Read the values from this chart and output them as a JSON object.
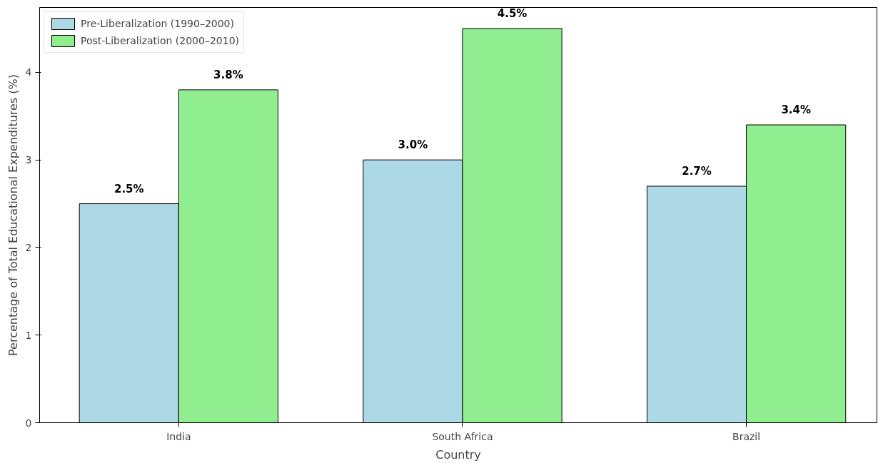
{
  "chart_data": {
    "type": "bar",
    "xlabel": "Country",
    "ylabel": "Percentage of Total Educational Expenditures (%)",
    "categories": [
      "India",
      "South Africa",
      "Brazil"
    ],
    "series": [
      {
        "name": "Pre-Liberalization (1990–2000)",
        "color": "#add8e6",
        "values": [
          2.5,
          3.0,
          2.7
        ],
        "value_labels": [
          "2.5%",
          "3.0%",
          "2.7%"
        ]
      },
      {
        "name": "Post-Liberalization (2000–2010)",
        "color": "#90ee90",
        "values": [
          3.8,
          4.5,
          3.4
        ],
        "value_labels": [
          "3.8%",
          "4.5%",
          "3.4%"
        ]
      }
    ],
    "ylim": [
      0,
      4.74
    ],
    "yticks": [
      0,
      1,
      2,
      3,
      4
    ],
    "grid": false,
    "legend": "top left"
  }
}
